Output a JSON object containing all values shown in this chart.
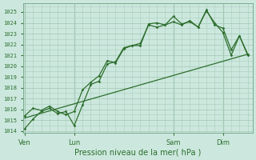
{
  "xlabel": "Pression niveau de la mer( hPa )",
  "bg_color": "#cce8de",
  "grid_color": "#aaccbb",
  "line_color": "#2d6e2d",
  "ylim": [
    1013.8,
    1025.8
  ],
  "yticks": [
    1014,
    1015,
    1016,
    1017,
    1018,
    1019,
    1020,
    1021,
    1022,
    1023,
    1024,
    1025
  ],
  "xtick_labels": [
    "Ven",
    "Lun",
    "Sam",
    "Dim"
  ],
  "xtick_positions": [
    0,
    3,
    9,
    12
  ],
  "xlim": [
    -0.1,
    13.8
  ],
  "line1_x": [
    0,
    0.5,
    1.0,
    1.5,
    2.0,
    2.5,
    3.0,
    3.5,
    4.0,
    4.5,
    5.0,
    5.5,
    6.0,
    6.5,
    7.0,
    7.5,
    8.0,
    8.5,
    9.0,
    9.5,
    10.0,
    10.5,
    11.0,
    11.5,
    12.0,
    12.5,
    13.0,
    13.5
  ],
  "line1_y": [
    1014.2,
    1015.1,
    1015.8,
    1016.1,
    1015.6,
    1015.8,
    1014.5,
    1016.4,
    1018.3,
    1018.6,
    1020.2,
    1020.4,
    1021.7,
    1021.9,
    1021.9,
    1023.9,
    1024.0,
    1023.8,
    1024.6,
    1023.9,
    1024.1,
    1023.6,
    1025.1,
    1024.0,
    1023.1,
    1021.0,
    1022.8,
    1021.0
  ],
  "line2_x": [
    0,
    13.5
  ],
  "line2_y": [
    1015.2,
    1021.1
  ],
  "line3_x": [
    0,
    0.5,
    1.0,
    1.5,
    2.0,
    2.5,
    3.0,
    3.5,
    4.0,
    4.5,
    5.0,
    5.5,
    6.0,
    6.5,
    7.0,
    7.5,
    8.0,
    8.5,
    9.0,
    9.5,
    10.0,
    10.5,
    11.0,
    11.5,
    12.0,
    12.5,
    13.0,
    13.5
  ],
  "line3_y": [
    1015.4,
    1016.1,
    1015.9,
    1016.3,
    1015.8,
    1015.5,
    1015.8,
    1017.8,
    1018.5,
    1019.1,
    1020.5,
    1020.3,
    1021.6,
    1021.9,
    1022.1,
    1023.8,
    1023.6,
    1023.8,
    1024.1,
    1023.8,
    1024.2,
    1023.6,
    1025.2,
    1023.8,
    1023.5,
    1021.5,
    1022.8,
    1021.1
  ]
}
